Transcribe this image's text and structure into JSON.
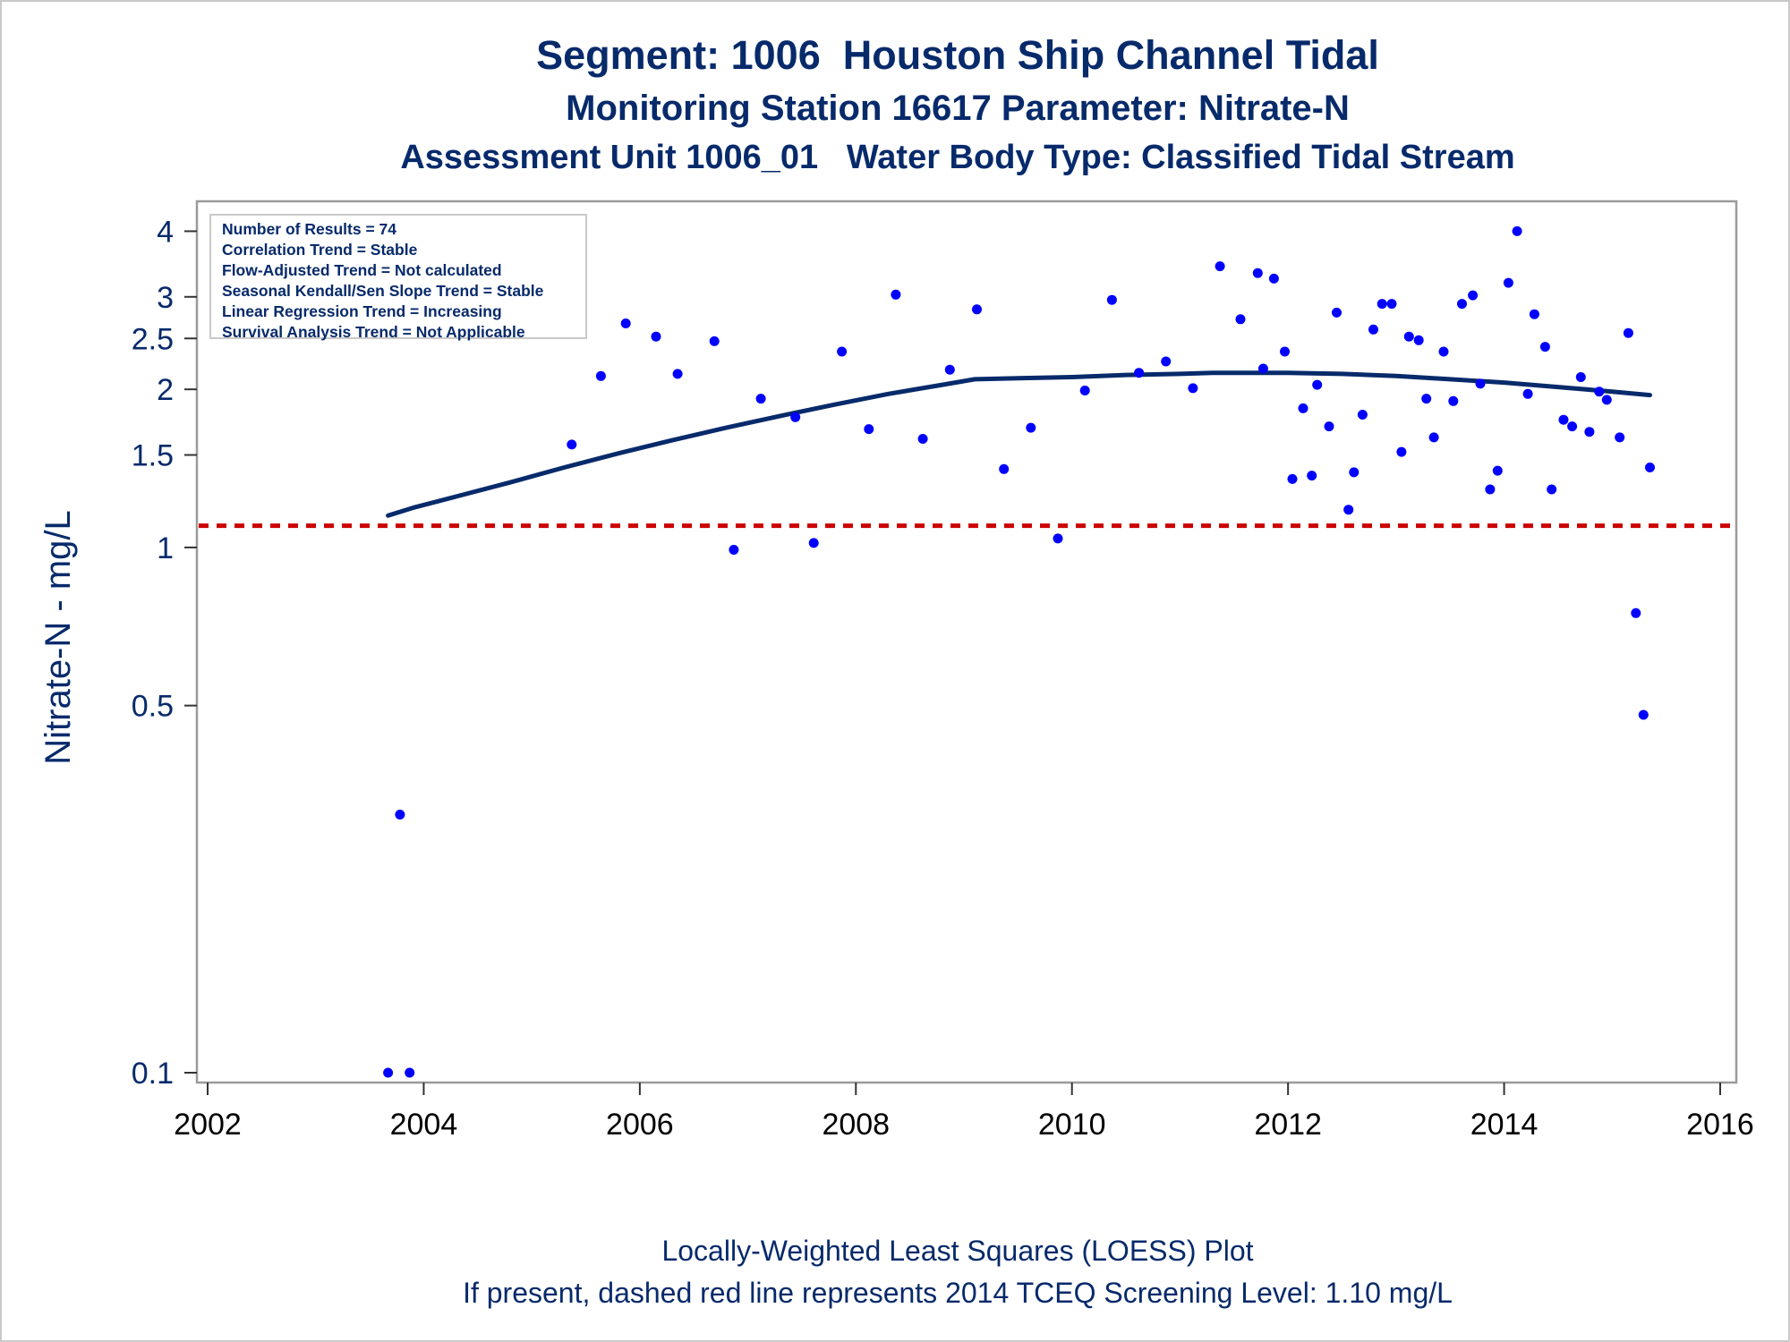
{
  "titles": {
    "line1": "Segment: 1006  Houston Ship Channel Tidal",
    "line2": "Monitoring Station 16617 Parameter: Nitrate-N",
    "line3": "Assessment Unit 1006_01   Water Body Type: Classified Tidal Stream"
  },
  "footnotes": {
    "line1": "Locally-Weighted Least Squares (LOESS) Plot",
    "line2": "If present, dashed red line represents 2014 TCEQ Screening Level: 1.10 mg/L"
  },
  "stats_box": {
    "lines": [
      "Number of Results = 74",
      "Correlation Trend = Stable",
      "Flow-Adjusted Trend = Not calculated",
      "Seasonal Kendall/Sen Slope Trend = Stable",
      "Linear Regression Trend = Increasing",
      "Survival Analysis Trend = Not Applicable"
    ]
  },
  "chart_data": {
    "type": "scatter",
    "ylabel": "Nitrate-N - mg/L",
    "xlabel": "",
    "x_scale": "linear",
    "y_scale": "log",
    "xlim": [
      2002,
      2016
    ],
    "ylim": [
      0.1,
      4.3
    ],
    "x_ticks": [
      2002,
      2004,
      2006,
      2008,
      2010,
      2012,
      2014,
      2016
    ],
    "x_tick_labels": [
      "2002",
      "2004",
      "2006",
      "2008",
      "2010",
      "2012",
      "2014",
      "2016"
    ],
    "y_ticks": [
      0.1,
      0.5,
      1,
      1.5,
      2,
      2.5,
      3,
      4
    ],
    "y_tick_labels": [
      "0.1",
      "0.5",
      "1",
      "1.5",
      "2",
      "2.5",
      "3",
      "4"
    ],
    "grid": false,
    "colors": {
      "points": "#0000ff",
      "loess": "#072a6b",
      "screening_line": "#cc0000",
      "text": "#072a6b",
      "frame": "#9a9a9a"
    },
    "screening_level": 1.1,
    "points": [
      {
        "x": 2003.67,
        "y": 0.1
      },
      {
        "x": 2003.78,
        "y": 0.31
      },
      {
        "x": 2003.87,
        "y": 0.1
      },
      {
        "x": 2005.37,
        "y": 1.57
      },
      {
        "x": 2005.64,
        "y": 2.12
      },
      {
        "x": 2005.87,
        "y": 2.67
      },
      {
        "x": 2006.15,
        "y": 2.52
      },
      {
        "x": 2006.35,
        "y": 2.14
      },
      {
        "x": 2006.69,
        "y": 2.47
      },
      {
        "x": 2006.87,
        "y": 0.99
      },
      {
        "x": 2007.12,
        "y": 1.92
      },
      {
        "x": 2007.44,
        "y": 1.77
      },
      {
        "x": 2007.61,
        "y": 1.02
      },
      {
        "x": 2007.87,
        "y": 2.36
      },
      {
        "x": 2008.12,
        "y": 1.68
      },
      {
        "x": 2008.37,
        "y": 3.03
      },
      {
        "x": 2008.62,
        "y": 1.61
      },
      {
        "x": 2008.87,
        "y": 2.18
      },
      {
        "x": 2009.12,
        "y": 2.84
      },
      {
        "x": 2009.37,
        "y": 1.41
      },
      {
        "x": 2009.62,
        "y": 1.69
      },
      {
        "x": 2009.87,
        "y": 1.04
      },
      {
        "x": 2010.12,
        "y": 1.99
      },
      {
        "x": 2010.37,
        "y": 2.96
      },
      {
        "x": 2010.62,
        "y": 2.15
      },
      {
        "x": 2010.87,
        "y": 2.26
      },
      {
        "x": 2011.12,
        "y": 2.01
      },
      {
        "x": 2011.37,
        "y": 3.43
      },
      {
        "x": 2011.56,
        "y": 2.72
      },
      {
        "x": 2011.72,
        "y": 3.33
      },
      {
        "x": 2011.77,
        "y": 2.19
      },
      {
        "x": 2011.87,
        "y": 3.25
      },
      {
        "x": 2011.97,
        "y": 2.36
      },
      {
        "x": 2012.04,
        "y": 1.35
      },
      {
        "x": 2012.14,
        "y": 1.84
      },
      {
        "x": 2012.22,
        "y": 1.37
      },
      {
        "x": 2012.27,
        "y": 2.04
      },
      {
        "x": 2012.38,
        "y": 1.7
      },
      {
        "x": 2012.45,
        "y": 2.8
      },
      {
        "x": 2012.56,
        "y": 1.18
      },
      {
        "x": 2012.61,
        "y": 1.39
      },
      {
        "x": 2012.69,
        "y": 1.79
      },
      {
        "x": 2012.79,
        "y": 2.6
      },
      {
        "x": 2012.87,
        "y": 2.91
      },
      {
        "x": 2012.96,
        "y": 2.91
      },
      {
        "x": 2013.05,
        "y": 1.52
      },
      {
        "x": 2013.12,
        "y": 2.52
      },
      {
        "x": 2013.21,
        "y": 2.48
      },
      {
        "x": 2013.28,
        "y": 1.92
      },
      {
        "x": 2013.35,
        "y": 1.62
      },
      {
        "x": 2013.44,
        "y": 2.36
      },
      {
        "x": 2013.53,
        "y": 1.9
      },
      {
        "x": 2013.61,
        "y": 2.91
      },
      {
        "x": 2013.71,
        "y": 3.02
      },
      {
        "x": 2013.78,
        "y": 2.05
      },
      {
        "x": 2013.87,
        "y": 1.29
      },
      {
        "x": 2013.94,
        "y": 1.4
      },
      {
        "x": 2014.04,
        "y": 3.19
      },
      {
        "x": 2014.12,
        "y": 4.0
      },
      {
        "x": 2014.22,
        "y": 1.96
      },
      {
        "x": 2014.28,
        "y": 2.78
      },
      {
        "x": 2014.38,
        "y": 2.41
      },
      {
        "x": 2014.44,
        "y": 1.29
      },
      {
        "x": 2014.55,
        "y": 1.75
      },
      {
        "x": 2014.63,
        "y": 1.7
      },
      {
        "x": 2014.71,
        "y": 2.11
      },
      {
        "x": 2014.79,
        "y": 1.66
      },
      {
        "x": 2014.88,
        "y": 1.98
      },
      {
        "x": 2014.95,
        "y": 1.91
      },
      {
        "x": 2015.07,
        "y": 1.62
      },
      {
        "x": 2015.15,
        "y": 2.56
      },
      {
        "x": 2015.22,
        "y": 0.75
      },
      {
        "x": 2015.29,
        "y": 0.48
      },
      {
        "x": 2015.35,
        "y": 1.42
      }
    ],
    "loess": {
      "x": [
        2003.67,
        2003.9,
        2004.3,
        2004.8,
        2005.3,
        2005.8,
        2006.3,
        2006.8,
        2007.3,
        2007.8,
        2008.3,
        2008.8,
        2009.1,
        2009.5,
        2010.0,
        2010.5,
        2011.0,
        2011.3,
        2011.7,
        2012.0,
        2012.5,
        2013.0,
        2013.5,
        2014.0,
        2014.5,
        2015.0,
        2015.35
      ],
      "y": [
        1.15,
        1.19,
        1.25,
        1.33,
        1.42,
        1.51,
        1.6,
        1.69,
        1.78,
        1.87,
        1.96,
        2.04,
        2.09,
        2.1,
        2.11,
        2.13,
        2.14,
        2.15,
        2.15,
        2.15,
        2.14,
        2.12,
        2.09,
        2.06,
        2.02,
        1.98,
        1.95
      ]
    }
  }
}
